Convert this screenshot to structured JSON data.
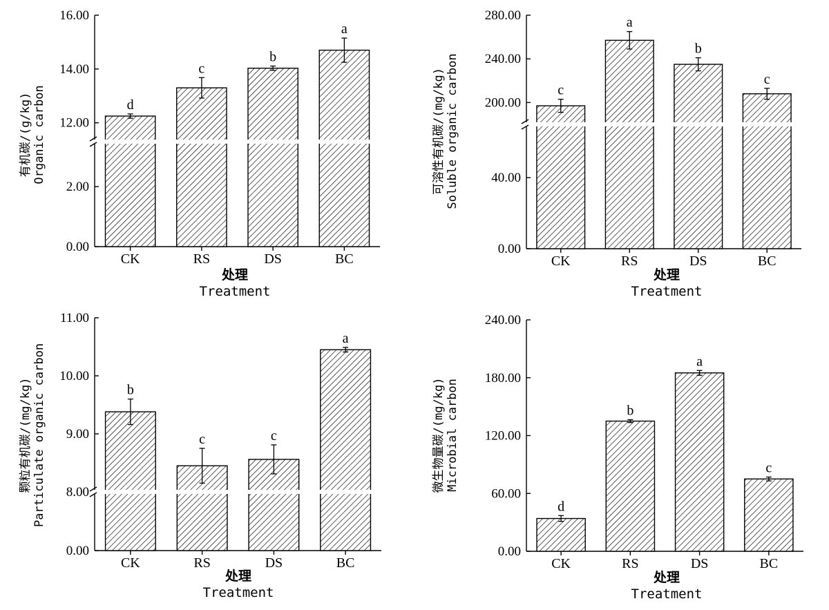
{
  "chart_data": [
    {
      "type": "bar",
      "categories": [
        "CK",
        "RS",
        "DS",
        "BC"
      ],
      "values": [
        12.25,
        13.3,
        14.03,
        14.7
      ],
      "errors": [
        0.08,
        0.38,
        0.08,
        0.45
      ],
      "significance": [
        "d",
        "c",
        "b",
        "a"
      ],
      "ylabel_cn": "有机碳/(g/kg)",
      "ylabel_en": "Organic carbon",
      "xlabel_cn": "处理",
      "xlabel_en": "Treatment",
      "axis_break": {
        "lower_max": 3.5,
        "upper_min": 11.3
      },
      "ylim": [
        0,
        16
      ],
      "yticks_lower": [
        "0.00",
        "2.00"
      ],
      "yticks_upper": [
        "12.00",
        "14.00",
        "16.00"
      ]
    },
    {
      "type": "bar",
      "categories": [
        "CK",
        "RS",
        "DS",
        "BC"
      ],
      "values": [
        197,
        257,
        235,
        208
      ],
      "errors": [
        6,
        8,
        6,
        5
      ],
      "significance": [
        "c",
        "a",
        "b",
        "c"
      ],
      "ylabel_cn": "可溶性有机碳/(mg/kg)",
      "ylabel_en": "Soluble organic carbon",
      "xlabel_cn": "处理",
      "xlabel_en": "Treatment",
      "axis_break": {
        "lower_max": 70,
        "upper_min": 180
      },
      "ylim": [
        0,
        280
      ],
      "yticks_lower": [
        "0.00",
        "40.00"
      ],
      "yticks_upper": [
        "200.00",
        "240.00",
        "280.00"
      ]
    },
    {
      "type": "bar",
      "categories": [
        "CK",
        "RS",
        "DS",
        "BC"
      ],
      "values": [
        9.38,
        8.45,
        8.56,
        10.45
      ],
      "errors": [
        0.22,
        0.3,
        0.25,
        0.04
      ],
      "significance": [
        "b",
        "c",
        "c",
        "a"
      ],
      "ylabel_cn": "颗粒有机碳/(mg/kg)",
      "ylabel_en": "Particulate organic carbon",
      "xlabel_cn": "处理",
      "xlabel_en": "Treatment",
      "axis_break": {
        "lower_max": 8.0,
        "upper_min": 8.0
      },
      "ylim": [
        0,
        11
      ],
      "yticks_lower": [
        "0.00"
      ],
      "yticks_upper": [
        "8.00",
        "9.00",
        "10.00",
        "11.00"
      ]
    },
    {
      "type": "bar",
      "categories": [
        "CK",
        "RS",
        "DS",
        "BC"
      ],
      "values": [
        34,
        135,
        185,
        75
      ],
      "errors": [
        3,
        1.5,
        2.5,
        2
      ],
      "significance": [
        "d",
        "b",
        "a",
        "c"
      ],
      "ylabel_cn": "微生物量碳/(mg/kg)",
      "ylabel_en": "Microbial carbon",
      "xlabel_cn": "处理",
      "xlabel_en": "Treatment",
      "axis_break": null,
      "ylim": [
        0,
        240
      ],
      "yticks": [
        "0.00",
        "60.00",
        "120.00",
        "180.00",
        "240.00"
      ]
    }
  ]
}
